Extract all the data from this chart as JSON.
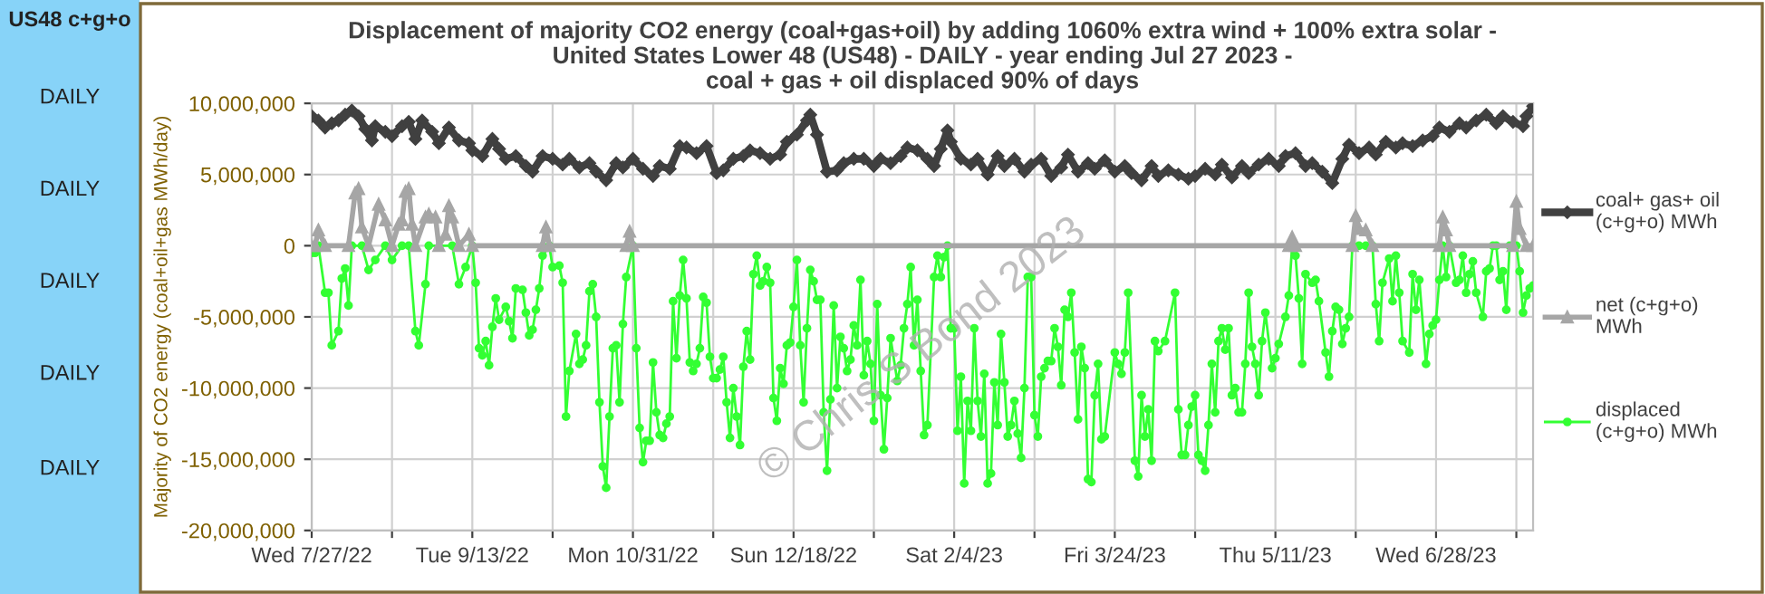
{
  "chart_data": {
    "type": "line",
    "title": "Displacement of majority CO2 energy (coal+gas+oil) by adding 1060% extra wind + 100% extra solar -\nUnited States Lower 48 (US48) - DAILY - year ending Jul 27 2023 -\ncoal + gas + oil displaced 90% of days",
    "ylabel": "Majority of CO2 energy (coal+oil+gas MWh/day)",
    "annotations": [
      "US48 c+g+o",
      "DAILY",
      "DAILY",
      "DAILY",
      "DAILY",
      "DAILY",
      "© Chris S Bond 2023"
    ],
    "xlim": [
      "2022-07-27",
      "2023-07-27"
    ],
    "xticks": [
      {
        "value": "2022-07-27",
        "label": "Wed 7/27/22"
      },
      {
        "value": "2022-08-20",
        "label": null
      },
      {
        "value": "2022-09-13",
        "label": "Tue 9/13/22"
      },
      {
        "value": "2022-10-07",
        "label": null
      },
      {
        "value": "2022-10-31",
        "label": "Mon 10/31/22"
      },
      {
        "value": "2022-11-24",
        "label": null
      },
      {
        "value": "2022-12-18",
        "label": "Sun 12/18/22"
      },
      {
        "value": "2023-01-11",
        "label": null
      },
      {
        "value": "2023-02-04",
        "label": "Sat 2/4/23"
      },
      {
        "value": "2023-02-28",
        "label": null
      },
      {
        "value": "2023-03-24",
        "label": "Fri 3/24/23"
      },
      {
        "value": "2023-04-17",
        "label": null
      },
      {
        "value": "2023-05-11",
        "label": "Thu 5/11/23"
      },
      {
        "value": "2023-06-04",
        "label": null
      },
      {
        "value": "2023-06-28",
        "label": "Wed 6/28/23"
      },
      {
        "value": "2023-07-22",
        "label": null
      }
    ],
    "ylim": [
      -20000000,
      10000000
    ],
    "yticks": [
      {
        "value": -20000000,
        "label": "-20,000,000"
      },
      {
        "value": -15000000,
        "label": "-15,000,000"
      },
      {
        "value": -10000000,
        "label": "-10,000,000"
      },
      {
        "value": -5000000,
        "label": "-5,000,000"
      },
      {
        "value": 0,
        "label": "0"
      },
      {
        "value": 5000000,
        "label": "5,000,000"
      },
      {
        "value": 10000000,
        "label": "10,000,000"
      }
    ],
    "grid": true,
    "legend": "right",
    "series": [
      {
        "name": "coal+ gas+ oil\n(c+g+o) MWh",
        "color": "#404040",
        "marker": "diamond",
        "x": [
          "2022-07-27",
          "2022-07-29",
          "2022-07-31",
          "2022-08-02",
          "2022-08-04",
          "2022-08-06",
          "2022-08-08",
          "2022-08-10",
          "2022-08-12",
          "2022-08-14",
          "2022-08-15",
          "2022-08-18",
          "2022-08-20",
          "2022-08-23",
          "2022-08-25",
          "2022-08-27",
          "2022-08-29",
          "2022-09-01",
          "2022-09-03",
          "2022-09-06",
          "2022-09-09",
          "2022-09-12",
          "2022-09-13",
          "2022-09-16",
          "2022-09-19",
          "2022-09-21",
          "2022-09-23",
          "2022-09-26",
          "2022-09-29",
          "2022-10-01",
          "2022-10-04",
          "2022-10-07",
          "2022-10-10",
          "2022-10-12",
          "2022-10-15",
          "2022-10-18",
          "2022-10-20",
          "2022-10-23",
          "2022-10-26",
          "2022-10-28",
          "2022-10-31",
          "2022-11-03",
          "2022-11-06",
          "2022-11-08",
          "2022-11-11",
          "2022-11-14",
          "2022-11-16",
          "2022-11-19",
          "2022-11-22",
          "2022-11-25",
          "2022-11-27",
          "2022-11-30",
          "2022-12-03",
          "2022-12-05",
          "2022-12-08",
          "2022-12-11",
          "2022-12-14",
          "2022-12-16",
          "2022-12-19",
          "2022-12-22",
          "2022-12-23",
          "2022-12-25",
          "2022-12-28",
          "2022-12-31",
          "2023-01-02",
          "2023-01-05",
          "2023-01-08",
          "2023-01-11",
          "2023-01-13",
          "2023-01-16",
          "2023-01-19",
          "2023-01-21",
          "2023-01-24",
          "2023-01-27",
          "2023-01-29",
          "2023-01-31",
          "2023-02-02",
          "2023-02-03",
          "2023-02-06",
          "2023-02-09",
          "2023-02-11",
          "2023-02-14",
          "2023-02-17",
          "2023-02-19",
          "2023-02-22",
          "2023-02-25",
          "2023-02-27",
          "2023-03-02",
          "2023-03-05",
          "2023-03-08",
          "2023-03-10",
          "2023-03-13",
          "2023-03-16",
          "2023-03-18",
          "2023-03-21",
          "2023-03-24",
          "2023-03-27",
          "2023-03-29",
          "2023-04-01",
          "2023-04-04",
          "2023-04-06",
          "2023-04-09",
          "2023-04-12",
          "2023-04-15",
          "2023-04-17",
          "2023-04-20",
          "2023-04-23",
          "2023-04-25",
          "2023-04-28",
          "2023-05-01",
          "2023-05-03",
          "2023-05-06",
          "2023-05-09",
          "2023-05-12",
          "2023-05-14",
          "2023-05-17",
          "2023-05-20",
          "2023-05-22",
          "2023-05-25",
          "2023-05-28",
          "2023-05-31",
          "2023-06-02",
          "2023-06-05",
          "2023-06-08",
          "2023-06-10",
          "2023-06-13",
          "2023-06-16",
          "2023-06-18",
          "2023-06-21",
          "2023-06-24",
          "2023-06-27",
          "2023-06-29",
          "2023-07-02",
          "2023-07-05",
          "2023-07-07",
          "2023-07-10",
          "2023-07-13",
          "2023-07-16",
          "2023-07-18",
          "2023-07-21",
          "2023-07-24",
          "2023-07-25",
          "2023-07-27"
        ],
        "values": [
          9100000,
          8800000,
          8300000,
          8600000,
          8800000,
          9200000,
          9500000,
          9100000,
          8200000,
          7400000,
          8400000,
          8000000,
          7700000,
          8400000,
          8700000,
          7500000,
          8800000,
          8000000,
          7200000,
          8300000,
          7400000,
          7200000,
          6700000,
          6300000,
          7500000,
          6800000,
          6100000,
          6300000,
          5600000,
          5200000,
          6300000,
          6100000,
          5700000,
          6100000,
          5500000,
          5800000,
          5200000,
          4600000,
          5800000,
          5500000,
          6100000,
          5400000,
          4900000,
          5600000,
          5400000,
          7000000,
          6900000,
          6500000,
          7000000,
          5100000,
          5300000,
          6100000,
          6300000,
          6700000,
          6500000,
          6100000,
          6400000,
          7300000,
          7800000,
          8800000,
          9200000,
          7800000,
          5200000,
          5300000,
          5800000,
          6100000,
          6100000,
          5600000,
          6100000,
          5800000,
          6300000,
          6900000,
          6700000,
          6100000,
          5600000,
          6800000,
          8100000,
          7300000,
          6100000,
          5700000,
          6100000,
          5000000,
          6300000,
          5600000,
          6100000,
          5200000,
          5700000,
          6100000,
          4900000,
          5500000,
          6400000,
          5200000,
          5800000,
          5400000,
          6000000,
          5200000,
          5600000,
          5100000,
          4600000,
          5600000,
          4900000,
          5300000,
          5000000,
          4700000,
          4900000,
          5400000,
          5000000,
          5700000,
          4800000,
          5600000,
          5100000,
          5700000,
          6100000,
          5600000,
          6300000,
          6500000,
          5600000,
          5800000,
          5200000,
          4400000,
          6100000,
          7100000,
          6500000,
          6900000,
          6400000,
          7300000,
          6900000,
          7200000,
          7000000,
          7400000,
          7700000,
          8300000,
          8000000,
          8600000,
          8300000,
          8800000,
          9200000,
          8600000,
          9100000,
          8700000,
          8400000,
          9100000,
          9800000
        ]
      },
      {
        "name": "net (c+g+o)\nMWh",
        "color": "#a6a6a6",
        "marker": "triangle",
        "x": [
          "2022-07-27",
          "2022-07-28",
          "2022-07-29",
          "2022-07-31",
          "2022-08-07",
          "2022-08-09",
          "2022-08-10",
          "2022-08-11",
          "2022-08-13",
          "2022-08-16",
          "2022-08-18",
          "2022-08-20",
          "2022-08-22",
          "2022-08-23",
          "2022-08-24",
          "2022-08-25",
          "2022-08-26",
          "2022-08-27",
          "2022-08-30",
          "2022-08-31",
          "2022-09-02",
          "2022-09-03",
          "2022-09-05",
          "2022-09-06",
          "2022-09-07",
          "2022-09-09",
          "2022-09-12",
          "2022-09-13",
          "2022-10-04",
          "2022-10-05",
          "2022-10-06",
          "2022-10-29",
          "2022-10-30",
          "2022-10-31",
          "2023-05-15",
          "2023-05-16",
          "2023-05-17",
          "2023-06-03",
          "2023-06-04",
          "2023-06-05",
          "2023-06-07",
          "2023-06-09",
          "2023-06-29",
          "2023-06-30",
          "2023-07-01",
          "2023-07-02",
          "2023-07-21",
          "2023-07-22",
          "2023-07-23",
          "2023-07-25",
          "2023-07-27"
        ],
        "values": [
          0,
          0,
          1100000,
          0,
          0,
          3700000,
          4000000,
          1300000,
          0,
          2900000,
          1800000,
          0,
          1500000,
          1800000,
          3800000,
          4000000,
          1500000,
          0,
          2000000,
          2200000,
          2000000,
          0,
          800000,
          2800000,
          2000000,
          0,
          800000,
          0,
          0,
          1300000,
          0,
          0,
          1000000,
          0,
          0,
          600000,
          0,
          0,
          2100000,
          1200000,
          1100000,
          0,
          0,
          2000000,
          1100000,
          0,
          0,
          3100000,
          1200000,
          0,
          0
        ]
      },
      {
        "name": "displaced\n(c+g+o) MWh",
        "color": "#33ff33",
        "marker": "circle",
        "x": [
          "2022-07-27",
          "2022-07-28",
          "2022-07-29",
          "2022-07-31",
          "2022-08-01",
          "2022-08-02",
          "2022-08-04",
          "2022-08-05",
          "2022-08-06",
          "2022-08-07",
          "2022-08-08",
          "2022-08-11",
          "2022-08-13",
          "2022-08-15",
          "2022-08-18",
          "2022-08-20",
          "2022-08-23",
          "2022-08-25",
          "2022-08-27",
          "2022-08-28",
          "2022-08-30",
          "2022-08-31",
          "2022-09-07",
          "2022-09-09",
          "2022-09-11",
          "2022-09-13",
          "2022-09-14",
          "2022-09-15",
          "2022-09-16",
          "2022-09-17",
          "2022-09-18",
          "2022-09-19",
          "2022-09-20",
          "2022-09-21",
          "2022-09-23",
          "2022-09-24",
          "2022-09-25",
          "2022-09-26",
          "2022-09-28",
          "2022-09-29",
          "2022-09-30",
          "2022-10-01",
          "2022-10-02",
          "2022-10-03",
          "2022-10-04",
          "2022-10-06",
          "2022-10-07",
          "2022-10-09",
          "2022-10-10",
          "2022-10-11",
          "2022-10-12",
          "2022-10-14",
          "2022-10-15",
          "2022-10-16",
          "2022-10-17",
          "2022-10-18",
          "2022-10-19",
          "2022-10-20",
          "2022-10-21",
          "2022-10-22",
          "2022-10-23",
          "2022-10-24",
          "2022-10-25",
          "2022-10-26",
          "2022-10-27",
          "2022-10-28",
          "2022-10-29",
          "2022-10-31",
          "2022-11-01",
          "2022-11-02",
          "2022-11-03",
          "2022-11-04",
          "2022-11-05",
          "2022-11-06",
          "2022-11-07",
          "2022-11-08",
          "2022-11-09",
          "2022-11-10",
          "2022-11-11",
          "2022-11-12",
          "2022-11-13",
          "2022-11-14",
          "2022-11-15",
          "2022-11-16",
          "2022-11-17",
          "2022-11-18",
          "2022-11-19",
          "2022-11-20",
          "2022-11-21",
          "2022-11-22",
          "2022-11-23",
          "2022-11-24",
          "2022-11-25",
          "2022-11-26",
          "2022-11-27",
          "2022-11-28",
          "2022-11-29",
          "2022-11-30",
          "2022-12-01",
          "2022-12-02",
          "2022-12-03",
          "2022-12-04",
          "2022-12-05",
          "2022-12-06",
          "2022-12-07",
          "2022-12-08",
          "2022-12-09",
          "2022-12-10",
          "2022-12-11",
          "2022-12-12",
          "2022-12-13",
          "2022-12-14",
          "2022-12-15",
          "2022-12-16",
          "2022-12-17",
          "2022-12-18",
          "2022-12-19",
          "2022-12-20",
          "2022-12-21",
          "2022-12-22",
          "2022-12-23",
          "2022-12-24",
          "2022-12-25",
          "2022-12-26",
          "2022-12-27",
          "2022-12-28",
          "2022-12-29",
          "2022-12-30",
          "2022-12-31",
          "2023-01-01",
          "2023-01-02",
          "2023-01-03",
          "2023-01-04",
          "2023-01-05",
          "2023-01-06",
          "2023-01-07",
          "2023-01-08",
          "2023-01-09",
          "2023-01-10",
          "2023-01-11",
          "2023-01-12",
          "2023-01-13",
          "2023-01-14",
          "2023-01-15",
          "2023-01-16",
          "2023-01-18",
          "2023-01-19",
          "2023-01-20",
          "2023-01-21",
          "2023-01-22",
          "2023-01-23",
          "2023-01-24",
          "2023-01-25",
          "2023-01-26",
          "2023-01-27",
          "2023-01-29",
          "2023-01-30",
          "2023-01-31",
          "2023-02-01",
          "2023-02-02",
          "2023-02-03",
          "2023-02-04",
          "2023-02-05",
          "2023-02-06",
          "2023-02-07",
          "2023-02-08",
          "2023-02-09",
          "2023-02-10",
          "2023-02-11",
          "2023-02-12",
          "2023-02-13",
          "2023-02-14",
          "2023-02-15",
          "2023-02-16",
          "2023-02-17",
          "2023-02-18",
          "2023-02-19",
          "2023-02-20",
          "2023-02-21",
          "2023-02-22",
          "2023-02-23",
          "2023-02-24",
          "2023-02-25",
          "2023-02-26",
          "2023-02-27",
          "2023-02-28",
          "2023-03-01",
          "2023-03-02",
          "2023-03-03",
          "2023-03-04",
          "2023-03-05",
          "2023-03-06",
          "2023-03-07",
          "2023-03-08",
          "2023-03-09",
          "2023-03-10",
          "2023-03-11",
          "2023-03-12",
          "2023-03-13",
          "2023-03-14",
          "2023-03-15",
          "2023-03-16",
          "2023-03-17",
          "2023-03-18",
          "2023-03-19",
          "2023-03-20",
          "2023-03-21",
          "2023-03-24",
          "2023-03-25",
          "2023-03-26",
          "2023-03-27",
          "2023-03-28",
          "2023-03-30",
          "2023-03-31",
          "2023-04-01",
          "2023-04-02",
          "2023-04-03",
          "2023-04-04",
          "2023-04-05",
          "2023-04-06",
          "2023-04-08",
          "2023-04-11",
          "2023-04-12",
          "2023-04-13",
          "2023-04-14",
          "2023-04-15",
          "2023-04-16",
          "2023-04-17",
          "2023-04-18",
          "2023-04-19",
          "2023-04-20",
          "2023-04-21",
          "2023-04-22",
          "2023-04-23",
          "2023-04-24",
          "2023-04-25",
          "2023-04-26",
          "2023-04-27",
          "2023-04-28",
          "2023-04-29",
          "2023-04-30",
          "2023-05-01",
          "2023-05-02",
          "2023-05-03",
          "2023-05-04",
          "2023-05-05",
          "2023-05-06",
          "2023-05-07",
          "2023-05-08",
          "2023-05-10",
          "2023-05-11",
          "2023-05-12",
          "2023-05-14",
          "2023-05-15",
          "2023-05-16",
          "2023-05-17",
          "2023-05-18",
          "2023-05-19",
          "2023-05-20",
          "2023-05-22",
          "2023-05-23",
          "2023-05-24",
          "2023-05-26",
          "2023-05-27",
          "2023-05-28",
          "2023-05-29",
          "2023-05-30",
          "2023-05-31",
          "2023-06-01",
          "2023-06-02",
          "2023-06-03",
          "2023-06-05",
          "2023-06-07",
          "2023-06-09",
          "2023-06-10",
          "2023-06-11",
          "2023-06-12",
          "2023-06-14",
          "2023-06-15",
          "2023-06-16",
          "2023-06-17",
          "2023-06-18",
          "2023-06-20",
          "2023-06-21",
          "2023-06-22",
          "2023-06-23",
          "2023-06-25",
          "2023-06-26",
          "2023-06-27",
          "2023-06-28",
          "2023-06-29",
          "2023-06-30",
          "2023-07-01",
          "2023-07-02",
          "2023-07-04",
          "2023-07-05",
          "2023-07-06",
          "2023-07-07",
          "2023-07-08",
          "2023-07-09",
          "2023-07-10",
          "2023-07-12",
          "2023-07-13",
          "2023-07-14",
          "2023-07-15",
          "2023-07-16",
          "2023-07-17",
          "2023-07-18",
          "2023-07-19",
          "2023-07-20",
          "2023-07-22",
          "2023-07-23",
          "2023-07-24",
          "2023-07-25",
          "2023-07-26",
          "2023-07-27"
        ],
        "values": [
          -500000,
          -500000,
          0,
          -3300000,
          -3300000,
          -7000000,
          -6000000,
          -2300000,
          -1600000,
          -4200000,
          0,
          0,
          -1700000,
          -1000000,
          0,
          -1000000,
          0,
          0,
          -6000000,
          -7000000,
          -2700000,
          0,
          0,
          -2700000,
          -1500000,
          0,
          -2600000,
          -7200000,
          -7700000,
          -6700000,
          -8400000,
          -5700000,
          -3700000,
          -5200000,
          -4300000,
          -5300000,
          -6500000,
          -3000000,
          -3100000,
          -4700000,
          -6300000,
          -5900000,
          -4500000,
          -3000000,
          -700000,
          0,
          -1500000,
          -1400000,
          -2600000,
          -12000000,
          -8800000,
          -6200000,
          -8300000,
          -8000000,
          -7000000,
          -3200000,
          -2700000,
          -5000000,
          -11000000,
          -15500000,
          -17000000,
          -12000000,
          -7200000,
          -7000000,
          -11000000,
          -5500000,
          -2200000,
          0,
          -7200000,
          -12800000,
          -15200000,
          -13700000,
          -13700000,
          -8200000,
          -11700000,
          -13300000,
          -13500000,
          -12500000,
          -12000000,
          -3900000,
          -7900000,
          -3500000,
          -1000000,
          -3700000,
          -8200000,
          -8800000,
          -8300000,
          -7200000,
          -3600000,
          -4000000,
          -7800000,
          -9300000,
          -9300000,
          -8700000,
          -7800000,
          -11000000,
          -13500000,
          -10000000,
          -12000000,
          -14000000,
          -8500000,
          -6000000,
          -8000000,
          -2000000,
          -700000,
          -2800000,
          -2500000,
          -1500000,
          -2600000,
          -10700000,
          -12300000,
          -8600000,
          -9700000,
          -7000000,
          -6800000,
          -4300000,
          -1000000,
          -7000000,
          -11000000,
          -5800000,
          -1700000,
          -2500000,
          -3800000,
          -3800000,
          -11700000,
          -15800000,
          -10800000,
          -4200000,
          -10000000,
          -6400000,
          -7200000,
          -8800000,
          -8000000,
          -5600000,
          -7000000,
          -2400000,
          -9100000,
          -6700000,
          -8300000,
          -12300000,
          -4100000,
          -10500000,
          -14300000,
          -10700000,
          -6500000,
          -9500000,
          -8400000,
          -5800000,
          -4100000,
          -1500000,
          -7000000,
          -3800000,
          -8800000,
          -13300000,
          -12600000,
          -2200000,
          -700000,
          -2200000,
          -800000,
          0,
          -5800000,
          -5800000,
          -13000000,
          -9200000,
          -16700000,
          -10900000,
          -13000000,
          -5800000,
          -10900000,
          -13400000,
          -9000000,
          -16700000,
          -16000000,
          -9600000,
          -12600000,
          -6200000,
          -9600000,
          -13400000,
          -12600000,
          -10900000,
          -13200000,
          -14900000,
          -10000000,
          -2200000,
          -2200000,
          -11900000,
          -13400000,
          -9200000,
          -8600000,
          -8100000,
          -8100000,
          -5800000,
          -7100000,
          -9800000,
          -4500000,
          -5000000,
          -3300000,
          -7500000,
          -12200000,
          -7100000,
          -8600000,
          -16400000,
          -16600000,
          -10500000,
          -8300000,
          -13600000,
          -13400000,
          -7500000,
          -8300000,
          -9000000,
          -7500000,
          -3300000,
          -15100000,
          -16200000,
          -10500000,
          -13400000,
          -11500000,
          -15100000,
          -6700000,
          -7400000,
          -6700000,
          -3300000,
          -11500000,
          -14700000,
          -14700000,
          -12600000,
          -11300000,
          -10500000,
          -14700000,
          -15100000,
          -15800000,
          -12600000,
          -8300000,
          -11700000,
          -6700000,
          -5800000,
          -7300000,
          -5800000,
          -10500000,
          -10000000,
          -11700000,
          -11700000,
          -8300000,
          -3300000,
          -7100000,
          -8300000,
          -10500000,
          -6700000,
          -4700000,
          -8600000,
          -7900000,
          -6900000,
          -5000000,
          -3500000,
          0,
          -700000,
          -3700000,
          -8300000,
          -2000000,
          -2600000,
          -2400000,
          -3900000,
          -7500000,
          -9200000,
          -6000000,
          -4300000,
          -4500000,
          -6900000,
          -5800000,
          -5000000,
          0,
          0,
          0,
          0,
          -4100000,
          -6700000,
          -2600000,
          -900000,
          -3900000,
          -700000,
          -3300000,
          -6700000,
          -7500000,
          -2000000,
          -4500000,
          -2400000,
          -8300000,
          -6200000,
          -5600000,
          -5200000,
          -2400000,
          0,
          -2200000,
          0,
          -2600000,
          -2400000,
          -700000,
          -3300000,
          -2000000,
          -1100000,
          -3300000,
          -5000000,
          -1800000,
          -1600000,
          0,
          0,
          -2400000,
          -1800000,
          -4500000,
          0,
          0,
          -1800000,
          -4700000,
          -3500000,
          -3000000,
          -2800000
        ]
      }
    ]
  }
}
